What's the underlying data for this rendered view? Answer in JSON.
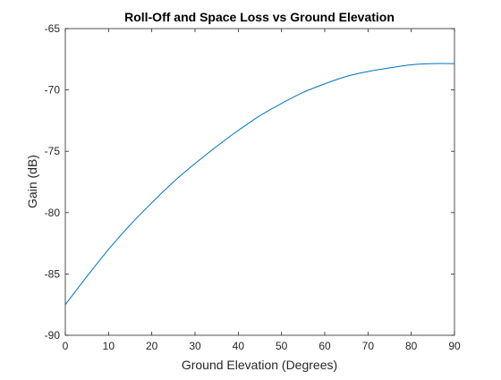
{
  "chart_data": {
    "type": "line",
    "title": "Roll-Off and Space Loss vs Ground Elevation",
    "xlabel": "Ground Elevation (Degrees)",
    "ylabel": "Gain (dB)",
    "xlim": [
      0,
      90
    ],
    "ylim": [
      -90,
      -65
    ],
    "xticks": [
      0,
      10,
      20,
      30,
      40,
      50,
      60,
      70,
      80,
      90
    ],
    "yticks": [
      -90,
      -85,
      -80,
      -75,
      -70,
      -65
    ],
    "grid": false,
    "legend": "none",
    "series": [
      {
        "color": "#0072bd",
        "x": [
          0,
          5,
          10,
          15,
          20,
          25,
          30,
          35,
          40,
          45,
          50,
          55,
          60,
          65,
          70,
          75,
          80,
          85,
          90
        ],
        "y": [
          -87.5,
          -85.2,
          -83.0,
          -81.0,
          -79.2,
          -77.5,
          -76.0,
          -74.6,
          -73.3,
          -72.1,
          -71.1,
          -70.2,
          -69.5,
          -68.9,
          -68.5,
          -68.2,
          -67.95,
          -67.85,
          -67.85
        ]
      }
    ]
  }
}
